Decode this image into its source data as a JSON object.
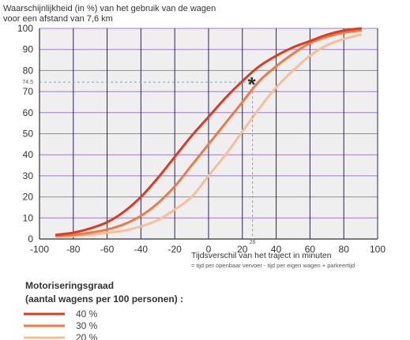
{
  "chart_data": {
    "type": "line",
    "title_lines": [
      "Waarschijnlijkheid (in %) van het gebruik van de wagen",
      "voor een afstand van 7,6 km"
    ],
    "xlabel": "Tijdsverschil van het traject in minuten",
    "xlabel_note": "= tijd per openbaar vervoer - tijd per eigen wagen + parkeertijd",
    "xlim": [
      -100,
      100
    ],
    "ylim": [
      0,
      100
    ],
    "x_ticks": [
      -100,
      -80,
      -60,
      -40,
      -20,
      0,
      20,
      40,
      60,
      80,
      100
    ],
    "y_ticks": [
      0,
      10,
      20,
      30,
      40,
      50,
      60,
      70,
      80,
      90,
      100
    ],
    "annotation": {
      "symbol": "*",
      "x": 26,
      "y": 74.5,
      "x_label": "26",
      "y_label": "74.5"
    },
    "legend_title_lines": [
      "Motoriseringsgraad",
      "(aantal wagens per 100 personen) :"
    ],
    "series": [
      {
        "name": "40 %",
        "color": "#e03a22",
        "x": [
          -90,
          -80,
          -70,
          -60,
          -50,
          -40,
          -30,
          -20,
          -10,
          0,
          10,
          20,
          30,
          40,
          50,
          60,
          70,
          80,
          90
        ],
        "y": [
          2,
          3,
          5,
          8,
          13,
          20,
          29,
          39,
          49,
          58,
          67,
          75,
          82,
          87,
          91,
          94,
          97,
          99,
          100
        ]
      },
      {
        "name": "30 %",
        "color": "#f07a45",
        "x": [
          -90,
          -80,
          -70,
          -60,
          -50,
          -40,
          -30,
          -20,
          -10,
          0,
          10,
          20,
          30,
          40,
          50,
          60,
          70,
          80,
          90
        ],
        "y": [
          1.5,
          2,
          3,
          4.5,
          7,
          11,
          17,
          25,
          35,
          45,
          55,
          65,
          75,
          82,
          88,
          93,
          96,
          98,
          99
        ]
      },
      {
        "name": "20 %",
        "color": "#f7be98",
        "x": [
          -90,
          -80,
          -70,
          -60,
          -50,
          -40,
          -30,
          -20,
          -10,
          0,
          10,
          20,
          30,
          40,
          50,
          60,
          70,
          80,
          90
        ],
        "y": [
          1,
          1.5,
          2,
          3,
          4,
          6,
          9,
          14,
          20,
          30,
          40,
          51,
          62,
          72,
          80,
          87,
          92,
          95,
          97
        ]
      }
    ],
    "grid": true
  }
}
